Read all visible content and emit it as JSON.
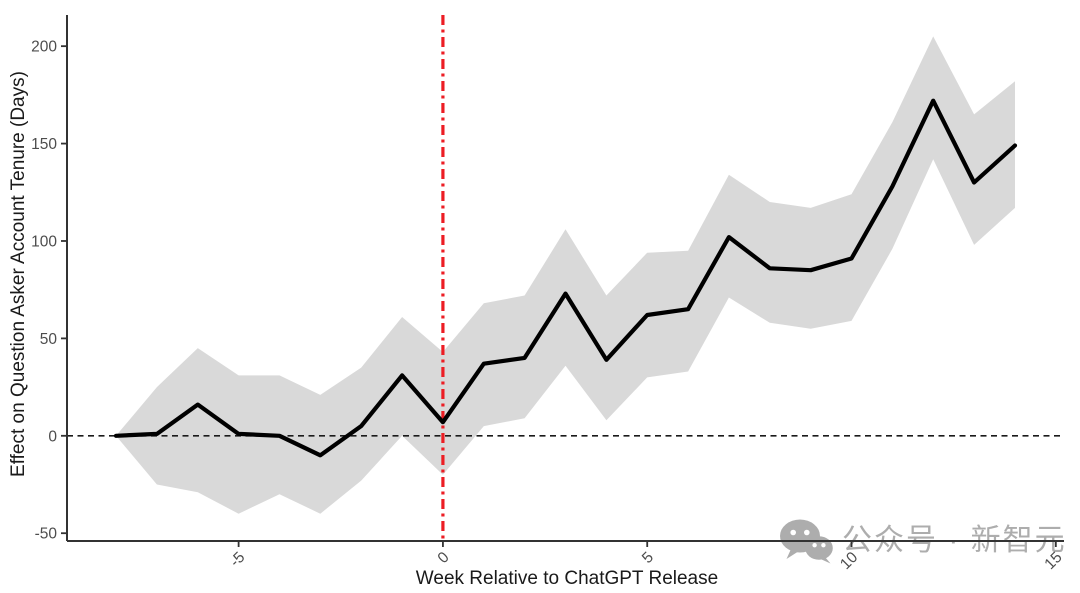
{
  "chart_data": {
    "type": "line",
    "title": "",
    "xlabel": "Week Relative to ChatGPT Release",
    "ylabel": "Effect on Question Asker Account Tenure (Days)",
    "x": [
      -8,
      -7,
      -6,
      -5,
      -4,
      -3,
      -2,
      -1,
      0,
      1,
      2,
      3,
      4,
      5,
      6,
      7,
      8,
      9,
      10,
      11,
      12,
      13,
      14
    ],
    "series": [
      {
        "name": "Effect on question asker account tenure (days)",
        "values": [
          0,
          1,
          16,
          1,
          0,
          -10,
          5,
          31,
          7,
          37,
          40,
          73,
          39,
          62,
          65,
          102,
          86,
          85,
          91,
          128,
          172,
          130,
          149
        ]
      }
    ],
    "ci_lower": [
      0,
      -25,
      -29,
      -40,
      -30,
      -40,
      -23,
      0,
      -20,
      5,
      9,
      36,
      8,
      30,
      33,
      71,
      58,
      55,
      59,
      96,
      142,
      98,
      117
    ],
    "ci_upper": [
      0,
      25,
      45,
      31,
      31,
      21,
      35,
      61,
      43,
      68,
      72,
      106,
      72,
      94,
      95,
      134,
      120,
      117,
      124,
      161,
      205,
      165,
      182
    ],
    "x_ticks": [
      -5,
      0,
      5,
      10,
      15
    ],
    "y_ticks": [
      -50,
      0,
      50,
      100,
      150,
      200
    ],
    "xlim": [
      -9.2,
      15.2
    ],
    "ylim": [
      -54,
      216
    ],
    "grid": false,
    "legend": "none",
    "reference_lines": {
      "vline_x": 0,
      "hline_y": 0
    },
    "styles": {
      "line_color": "#000000",
      "ribbon_color": "#d9d9d9",
      "vline_color": "#ec1d24",
      "hline_color": "#1a1a1a",
      "axis_color": "#333333",
      "tick_label_color": "#4d4d4d",
      "axis_title_color": "#1a1a1a",
      "x_tick_label_angle_deg": -45
    }
  },
  "watermark": {
    "icon": "wechat-icon",
    "text": "公众号 · 新智元",
    "color": "#a9a9a9"
  }
}
